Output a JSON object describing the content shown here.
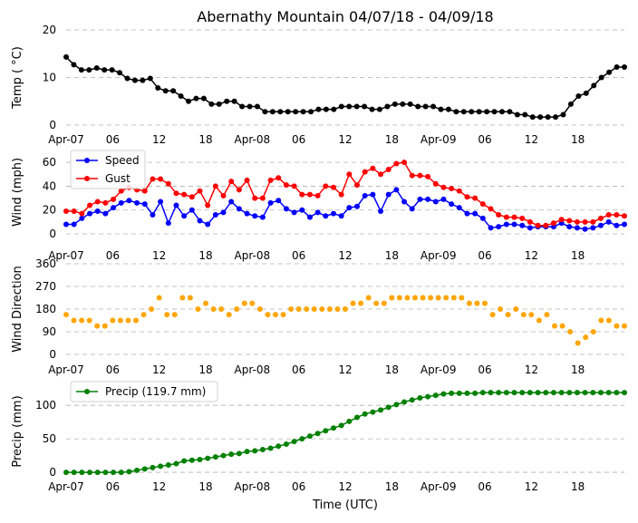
{
  "chart_data": [
    {
      "id": "temp",
      "type": "line",
      "title": "Abernathy Mountain 04/07/18 - 04/09/18",
      "ylabel": "Temp ( °C)",
      "ylim": [
        0,
        20
      ],
      "yticks": [
        0,
        10,
        20
      ],
      "xtick_labels": [
        "Apr-07",
        "06",
        "12",
        "18",
        "Apr-08",
        "06",
        "12",
        "18",
        "Apr-09",
        "06",
        "12",
        "18"
      ],
      "series": [
        {
          "name": "Temperature",
          "color": "#000000",
          "values": [
            14.3,
            12.7,
            11.6,
            11.6,
            12.0,
            11.6,
            11.6,
            11.0,
            9.8,
            9.4,
            9.4,
            9.8,
            7.8,
            7.2,
            7.2,
            6.1,
            5.0,
            5.6,
            5.6,
            4.4,
            4.4,
            5.0,
            5.0,
            3.9,
            3.9,
            3.9,
            2.8,
            2.8,
            2.8,
            2.8,
            2.8,
            2.8,
            2.8,
            3.3,
            3.3,
            3.3,
            3.9,
            3.9,
            3.9,
            3.9,
            3.3,
            3.3,
            3.9,
            4.4,
            4.4,
            4.4,
            3.9,
            3.9,
            3.9,
            3.3,
            3.3,
            2.8,
            2.8,
            2.8,
            2.8,
            2.8,
            2.8,
            2.8,
            2.8,
            2.2,
            2.2,
            1.7,
            1.7,
            1.7,
            1.7,
            2.2,
            4.4,
            6.1,
            6.7,
            8.3,
            10.0,
            11.1,
            12.2,
            12.2
          ]
        }
      ]
    },
    {
      "id": "wind",
      "type": "line",
      "ylabel": "Wind (mph)",
      "ylim": [
        0,
        70
      ],
      "yticks": [
        0,
        20,
        40,
        60
      ],
      "xtick_labels": [
        "Apr-07",
        "06",
        "12",
        "18",
        "Apr-08",
        "06",
        "12",
        "18",
        "Apr-09",
        "06",
        "12",
        "18"
      ],
      "legend": [
        "Speed",
        "Gust"
      ],
      "series": [
        {
          "name": "Speed",
          "color": "#0000ff",
          "values": [
            8,
            8,
            13,
            17,
            19,
            17,
            22,
            26,
            28,
            26,
            25,
            16,
            27,
            9,
            24,
            15,
            20,
            11,
            8,
            16,
            18,
            27,
            21,
            17,
            15,
            14,
            26,
            28,
            21,
            18,
            20,
            14,
            18,
            15,
            17,
            15,
            22,
            23,
            32,
            33,
            19,
            33,
            37,
            27,
            21,
            29,
            29,
            27,
            29,
            25,
            22,
            17,
            17,
            13,
            5,
            6,
            8,
            8,
            7,
            5,
            6,
            6,
            6,
            9,
            6,
            5,
            4,
            5,
            7,
            10,
            7,
            8
          ]
        },
        {
          "name": "Gust",
          "color": "#ff0000",
          "values": [
            19,
            19,
            17,
            24,
            27,
            26,
            29,
            36,
            39,
            37,
            36,
            46,
            46,
            42,
            34,
            33,
            31,
            36,
            24,
            40,
            32,
            44,
            37,
            45,
            30,
            30,
            45,
            47,
            41,
            40,
            33,
            33,
            32,
            40,
            39,
            33,
            50,
            41,
            52,
            55,
            50,
            54,
            59,
            60,
            49,
            49,
            48,
            42,
            39,
            38,
            36,
            31,
            30,
            25,
            21,
            16,
            14,
            14,
            13,
            10,
            7,
            7,
            9,
            12,
            11,
            10,
            10,
            10,
            13,
            16,
            16,
            15
          ]
        }
      ]
    },
    {
      "id": "direction",
      "type": "scatter",
      "ylabel": "Wind Direction",
      "ylim": [
        0,
        360
      ],
      "yticks": [
        0,
        90,
        180,
        270,
        360
      ],
      "xtick_labels": [
        "Apr-07",
        "06",
        "12",
        "18",
        "Apr-08",
        "06",
        "12",
        "18",
        "Apr-09",
        "06",
        "12",
        "18"
      ],
      "series": [
        {
          "name": "Direction",
          "color": "#ffa500",
          "values": [
            158,
            135,
            135,
            135,
            113,
            113,
            135,
            135,
            135,
            135,
            158,
            180,
            225,
            158,
            158,
            225,
            225,
            180,
            203,
            180,
            180,
            158,
            180,
            203,
            203,
            180,
            158,
            158,
            158,
            180,
            180,
            180,
            180,
            180,
            180,
            180,
            180,
            203,
            203,
            225,
            203,
            203,
            225,
            225,
            225,
            225,
            225,
            225,
            225,
            225,
            225,
            225,
            203,
            203,
            203,
            158,
            180,
            158,
            180,
            158,
            158,
            135,
            158,
            113,
            113,
            90,
            45,
            68,
            90,
            135,
            135,
            113,
            113
          ]
        }
      ]
    },
    {
      "id": "precip",
      "type": "line",
      "ylabel": "Precip (mm)",
      "xlabel": "Time (UTC)",
      "ylim": [
        -8,
        130
      ],
      "yticks": [
        0,
        50,
        100
      ],
      "xtick_labels": [
        "Apr-07",
        "06",
        "12",
        "18",
        "Apr-08",
        "06",
        "12",
        "18",
        "Apr-09",
        "06",
        "12",
        "18"
      ],
      "legend": [
        "Precip (119.7 mm)"
      ],
      "series": [
        {
          "name": "Precip (119.7 mm)",
          "color": "#008000",
          "values": [
            0,
            0,
            0,
            0,
            0,
            0,
            0,
            0,
            1,
            3,
            5,
            7,
            9,
            11,
            13,
            17,
            18,
            19,
            21,
            23,
            25,
            27,
            28,
            31,
            32,
            34,
            36,
            39,
            42,
            46,
            50,
            54,
            58,
            62,
            66,
            70,
            76,
            82,
            87,
            90,
            93,
            97,
            101,
            105,
            108,
            111,
            113,
            115,
            117,
            118,
            118,
            118,
            118,
            119,
            119,
            119,
            119,
            119,
            119,
            119,
            119,
            119,
            119,
            119,
            119,
            119,
            119,
            119,
            119,
            119,
            119,
            119
          ]
        }
      ]
    }
  ]
}
